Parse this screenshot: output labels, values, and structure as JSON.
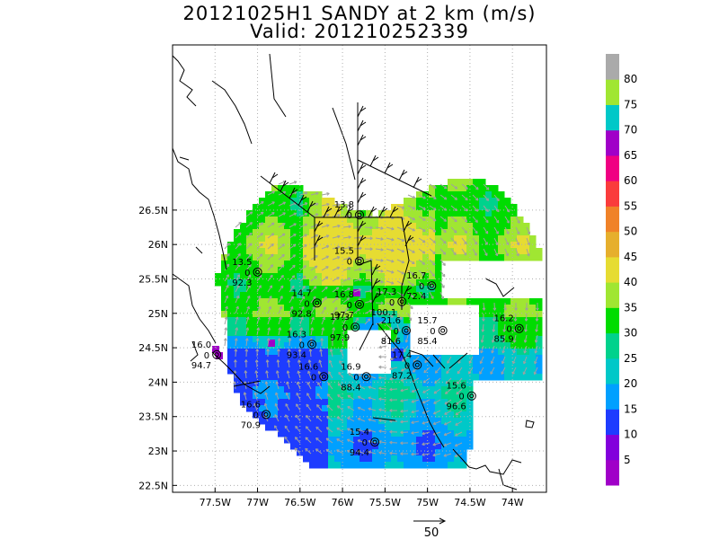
{
  "title": "20121025H1 SANDY at 2 km (m/s)",
  "subtitle": "Valid: 201210252339",
  "map": {
    "lon_range": [
      -78.0,
      -73.6
    ],
    "lat_range": [
      22.4,
      28.9
    ],
    "x_ticks": [
      {
        "lon": -77.5,
        "label": "77.5W"
      },
      {
        "lon": -77.0,
        "label": "77W"
      },
      {
        "lon": -76.5,
        "label": "76.5W"
      },
      {
        "lon": -76.0,
        "label": "76W"
      },
      {
        "lon": -75.5,
        "label": "75.5W"
      },
      {
        "lon": -75.0,
        "label": "75W"
      },
      {
        "lon": -74.5,
        "label": "74.5W"
      },
      {
        "lon": -74.0,
        "label": "74W"
      }
    ],
    "y_ticks": [
      {
        "lat": 22.5,
        "label": "22.5N"
      },
      {
        "lat": 23.0,
        "label": "23N"
      },
      {
        "lat": 23.5,
        "label": "23.5N"
      },
      {
        "lat": 24.0,
        "label": "24N"
      },
      {
        "lat": 24.5,
        "label": "24.5N"
      },
      {
        "lat": 25.0,
        "label": "25N"
      },
      {
        "lat": 25.5,
        "label": "25.5N"
      },
      {
        "lat": 26.0,
        "label": "26N"
      },
      {
        "lat": 26.5,
        "label": "26.5N"
      }
    ],
    "grid": "dotted",
    "storm_center": {
      "lon": -75.55,
      "lat": 24.7
    }
  },
  "colorbar": {
    "levels": [
      {
        "label": "",
        "color": "#a000c8"
      },
      {
        "label": "5",
        "color": "#8200dc"
      },
      {
        "label": "10",
        "color": "#1e3cff"
      },
      {
        "label": "15",
        "color": "#00a0ff"
      },
      {
        "label": "20",
        "color": "#00c8c8"
      },
      {
        "label": "25",
        "color": "#00d28c"
      },
      {
        "label": "30",
        "color": "#00dc00"
      },
      {
        "label": "35",
        "color": "#a0e632"
      },
      {
        "label": "40",
        "color": "#e6dc32"
      },
      {
        "label": "45",
        "color": "#e6af2d"
      },
      {
        "label": "50",
        "color": "#f08228"
      },
      {
        "label": "55",
        "color": "#fa3c3c"
      },
      {
        "label": "60",
        "color": "#f00082"
      },
      {
        "label": "65",
        "color": "#a000c8"
      },
      {
        "label": "70",
        "color": "#00c8c8"
      },
      {
        "label": "75",
        "color": "#a0e632"
      },
      {
        "label": "80",
        "color": "#aaaaaa"
      }
    ]
  },
  "stations": [
    {
      "lon": -75.8,
      "lat": 26.43,
      "speed": "13.8",
      "zero": "0",
      "pressure": ""
    },
    {
      "lon": -77.0,
      "lat": 25.6,
      "speed": "13.5",
      "zero": "0",
      "pressure": "92.3"
    },
    {
      "lon": -75.8,
      "lat": 25.76,
      "speed": "15.5",
      "zero": "0",
      "pressure": ""
    },
    {
      "lon": -74.95,
      "lat": 25.4,
      "speed": "16.7",
      "zero": "0",
      "pressure": "72.4"
    },
    {
      "lon": -76.3,
      "lat": 25.15,
      "speed": "14.7",
      "zero": "0",
      "pressure": "92.8"
    },
    {
      "lon": -75.8,
      "lat": 25.13,
      "speed": "16.8",
      "zero": "0",
      "pressure": "97.7"
    },
    {
      "lon": -75.3,
      "lat": 25.17,
      "speed": "17.3",
      "zero": "0",
      "pressure": "100.1"
    },
    {
      "lon": -75.85,
      "lat": 24.8,
      "speed": "17.3",
      "zero": "0",
      "pressure": "97.9"
    },
    {
      "lon": -75.25,
      "lat": 24.75,
      "speed": "21.6",
      "zero": "0",
      "pressure": "81.6"
    },
    {
      "lon": -74.82,
      "lat": 24.75,
      "speed": "15.7",
      "zero": "0",
      "pressure": "85.4"
    },
    {
      "lon": -73.92,
      "lat": 24.78,
      "speed": "16.2",
      "zero": "0",
      "pressure": "85.9"
    },
    {
      "lon": -76.36,
      "lat": 24.55,
      "speed": "16.3",
      "zero": "0",
      "pressure": "93.4"
    },
    {
      "lon": -77.48,
      "lat": 24.4,
      "speed": "16.0",
      "zero": "0",
      "pressure": "94.7"
    },
    {
      "lon": -75.12,
      "lat": 24.25,
      "speed": "17.4",
      "zero": "0",
      "pressure": "87.2"
    },
    {
      "lon": -76.22,
      "lat": 24.08,
      "speed": "16.6",
      "zero": "0",
      "pressure": ""
    },
    {
      "lon": -75.72,
      "lat": 24.08,
      "speed": "16.9",
      "zero": "0",
      "pressure": "88.4"
    },
    {
      "lon": -74.48,
      "lat": 23.8,
      "speed": "15.6",
      "zero": "0",
      "pressure": "96.6"
    },
    {
      "lon": -76.9,
      "lat": 23.53,
      "speed": "16.6",
      "zero": "0",
      "pressure": "70.9"
    },
    {
      "lon": -75.62,
      "lat": 23.13,
      "speed": "15.4",
      "zero": "0",
      "pressure": "94.4"
    }
  ],
  "reference_vector": {
    "label": "50"
  }
}
